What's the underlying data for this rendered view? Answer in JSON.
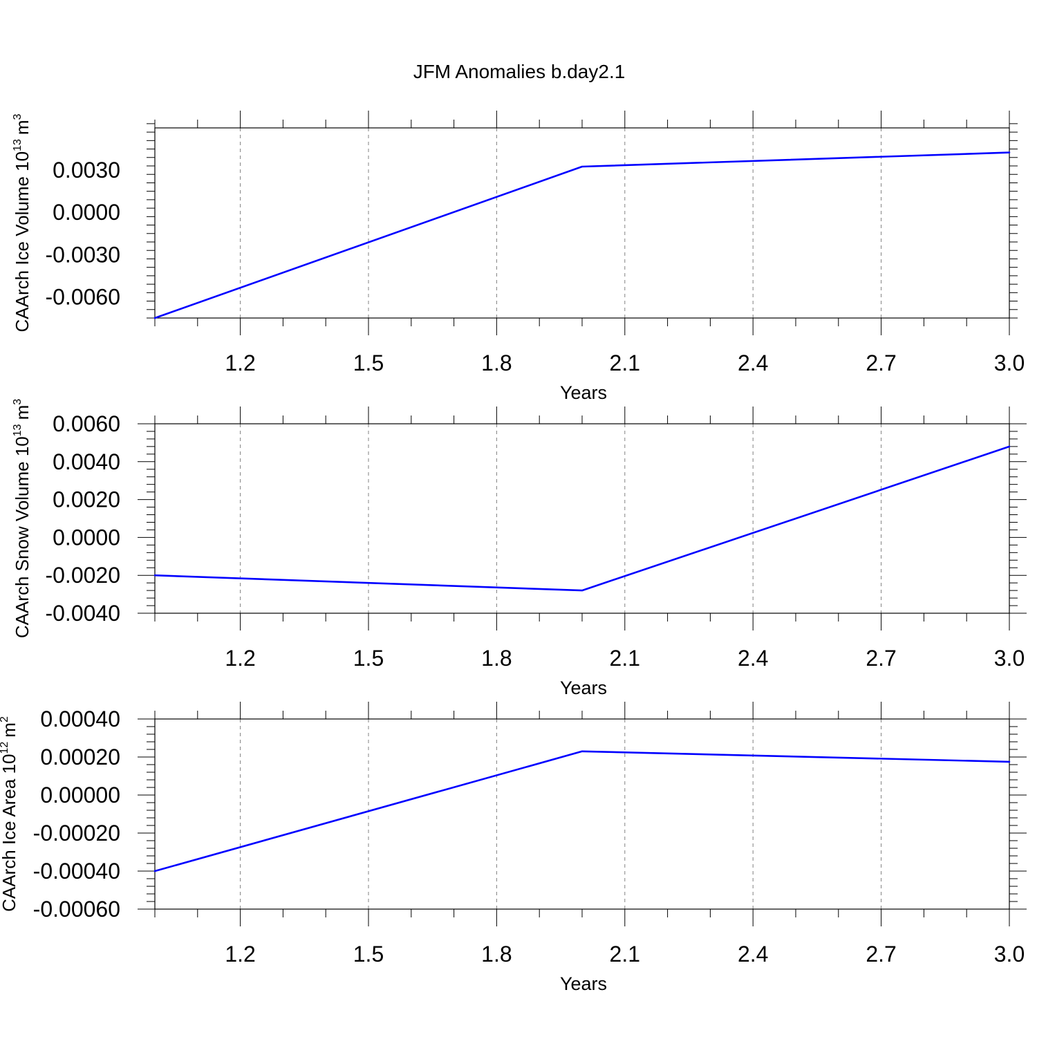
{
  "figure": {
    "title": "JFM Anomalies b.day2.1"
  },
  "style": {
    "line_color": "#0000ff",
    "axis_color": "#000000",
    "grid_color": "#808080"
  },
  "chart_data": [
    {
      "type": "line",
      "xlabel": "Years",
      "ylabel": "CAArch Ice Volume 10",
      "ylabel_exponent": "13",
      "ylabel_unit": "m",
      "ylabel_unit_exponent": "3",
      "xlim": [
        1.0,
        3.0
      ],
      "ylim": [
        -0.0075,
        0.006
      ],
      "x_ticks": [
        1.2,
        1.5,
        1.8,
        2.1,
        2.4,
        2.7,
        3.0
      ],
      "x_tick_labels": [
        "1.2",
        "1.5",
        "1.8",
        "2.1",
        "2.4",
        "2.7",
        "3.0"
      ],
      "x_minor_step": 0.1,
      "y_ticks": [
        -0.006,
        -0.003,
        0.0,
        0.003
      ],
      "y_tick_labels": [
        "-0.0060",
        "-0.0030",
        "0.0000",
        "0.0030"
      ],
      "y_minor_step": 0.0006,
      "grid": "x-dashed",
      "series": [
        {
          "x": [
            1.0,
            2.0,
            3.0
          ],
          "y": [
            -0.0075,
            0.00325,
            0.00425
          ]
        }
      ]
    },
    {
      "type": "line",
      "xlabel": "Years",
      "ylabel": "CAArch Snow Volume 10",
      "ylabel_exponent": "13",
      "ylabel_unit": "m",
      "ylabel_unit_exponent": "3",
      "xlim": [
        1.0,
        3.0
      ],
      "ylim": [
        -0.004,
        0.006
      ],
      "x_ticks": [
        1.2,
        1.5,
        1.8,
        2.1,
        2.4,
        2.7,
        3.0
      ],
      "x_tick_labels": [
        "1.2",
        "1.5",
        "1.8",
        "2.1",
        "2.4",
        "2.7",
        "3.0"
      ],
      "x_minor_step": 0.1,
      "y_ticks": [
        -0.004,
        -0.002,
        0.0,
        0.002,
        0.004,
        0.006
      ],
      "y_tick_labels": [
        "-0.0040",
        "-0.0020",
        "0.0000",
        "0.0020",
        "0.0040",
        "0.0060"
      ],
      "y_minor_step": 0.0004,
      "grid": "x-dashed",
      "series": [
        {
          "x": [
            1.0,
            2.0,
            3.0
          ],
          "y": [
            -0.002,
            -0.0028,
            0.0048
          ]
        }
      ]
    },
    {
      "type": "line",
      "xlabel": "Years",
      "ylabel": "CAArch Ice Area 10",
      "ylabel_exponent": "12",
      "ylabel_unit": "m",
      "ylabel_unit_exponent": "2",
      "xlim": [
        1.0,
        3.0
      ],
      "ylim": [
        -0.0006,
        0.0004
      ],
      "x_ticks": [
        1.2,
        1.5,
        1.8,
        2.1,
        2.4,
        2.7,
        3.0
      ],
      "x_tick_labels": [
        "1.2",
        "1.5",
        "1.8",
        "2.1",
        "2.4",
        "2.7",
        "3.0"
      ],
      "x_minor_step": 0.1,
      "y_ticks": [
        -0.0006,
        -0.0004,
        -0.0002,
        0.0,
        0.0002,
        0.0004
      ],
      "y_tick_labels": [
        "-0.00060",
        "-0.00040",
        "-0.00020",
        "0.00000",
        "0.00020",
        "0.00040"
      ],
      "y_minor_step": 4e-05,
      "grid": "x-dashed",
      "series": [
        {
          "x": [
            1.0,
            2.0,
            3.0
          ],
          "y": [
            -0.0004,
            0.00023,
            0.000175
          ]
        }
      ]
    }
  ]
}
